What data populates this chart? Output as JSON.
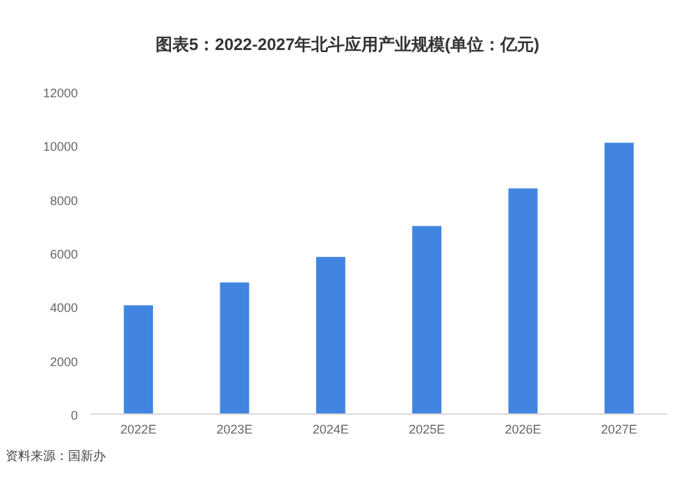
{
  "chart_data": {
    "type": "bar",
    "title": "图表5：2022-2027年北斗应用产业规模(单位：亿元)",
    "categories": [
      "2022E",
      "2023E",
      "2024E",
      "2025E",
      "2026E",
      "2027E"
    ],
    "values": [
      4050,
      4900,
      5850,
      7000,
      8400,
      10100
    ],
    "color": "#4285e0",
    "ylim": [
      0,
      12000
    ],
    "yticks": [
      0,
      2000,
      4000,
      6000,
      8000,
      10000,
      12000
    ],
    "grid": false,
    "annotations": [
      "资料来源：国新办"
    ]
  }
}
